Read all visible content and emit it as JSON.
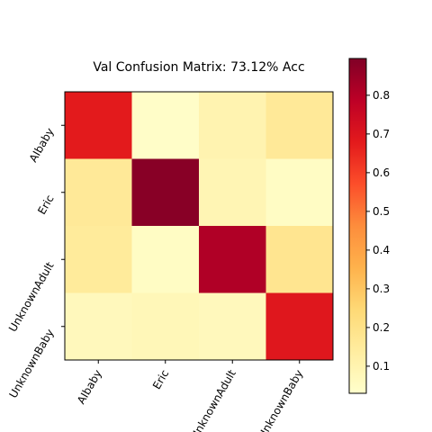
{
  "chart_data": {
    "type": "heatmap",
    "title": "Val Confusion Matrix: 73.12% Acc",
    "xlabel": "",
    "ylabel": "",
    "x_categories": [
      "AIbaby",
      "Eric",
      "UnknownAdult",
      "UnknownBaby"
    ],
    "y_categories": [
      "AIbaby",
      "Eric",
      "UnknownAdult",
      "UnknownBaby"
    ],
    "matrix": [
      [
        0.68,
        0.04,
        0.1,
        0.16
      ],
      [
        0.16,
        0.88,
        0.09,
        0.05
      ],
      [
        0.15,
        0.05,
        0.81,
        0.18
      ],
      [
        0.07,
        0.08,
        0.07,
        0.69
      ]
    ],
    "colormap": "YlOrRd",
    "vmin": 0.03,
    "vmax": 0.895,
    "colorbar_ticks": [
      0.1,
      0.2,
      0.3,
      0.4,
      0.5,
      0.6,
      0.7,
      0.8
    ],
    "colorbar_tick_labels": [
      "0.1",
      "0.2",
      "0.3",
      "0.4",
      "0.5",
      "0.6",
      "0.7",
      "0.8"
    ]
  }
}
